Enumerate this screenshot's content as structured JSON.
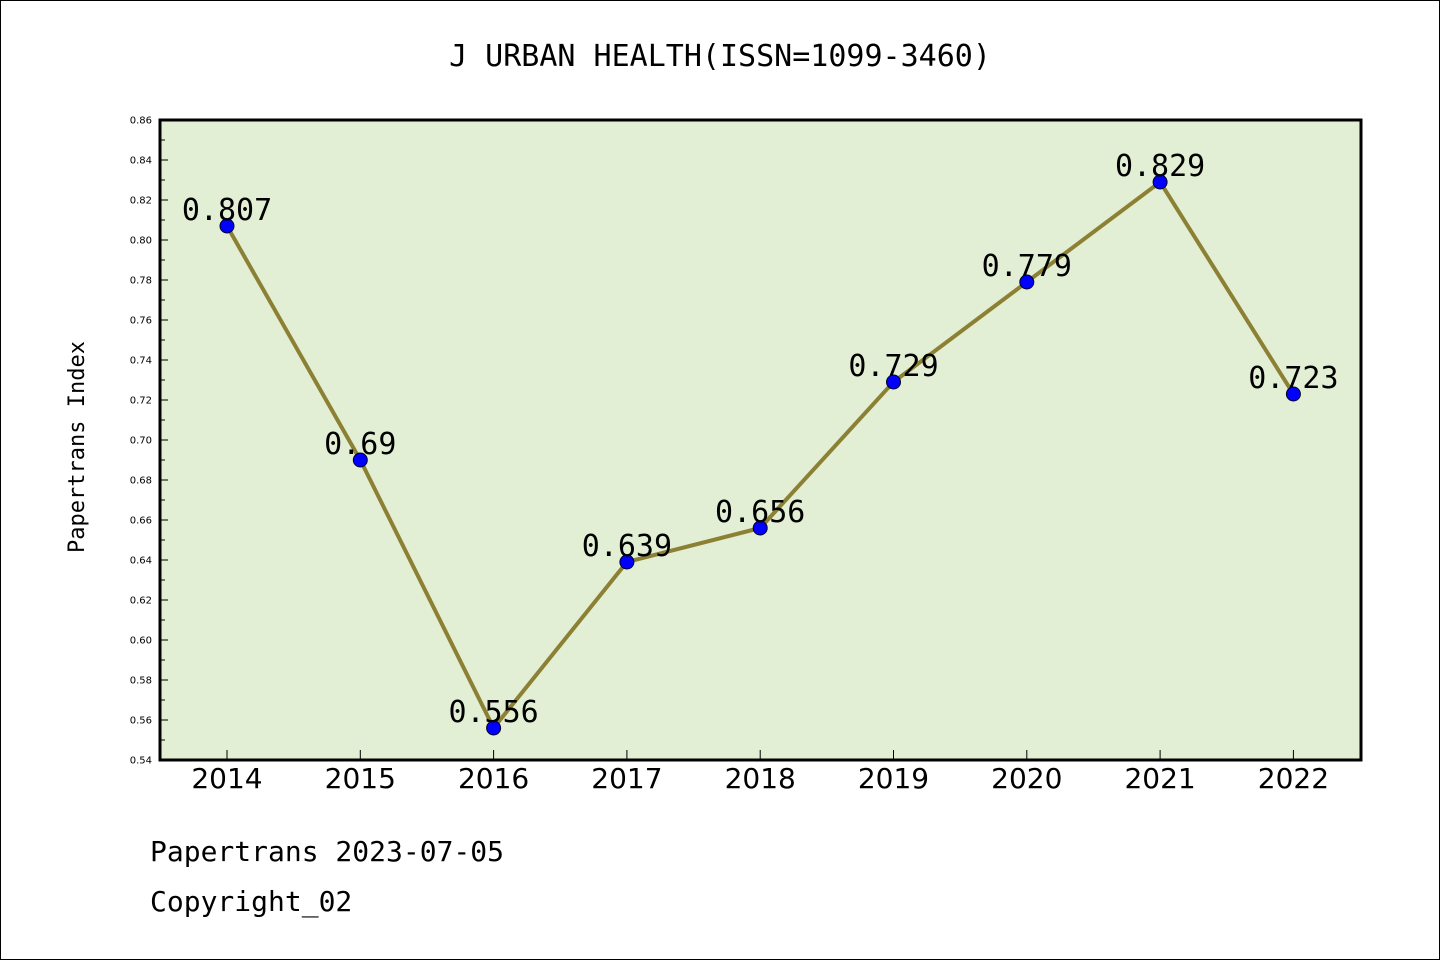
{
  "chart_data": {
    "type": "line",
    "title": "J URBAN HEALTH(ISSN=1099-3460)",
    "xlabel": "",
    "ylabel": "Papertrans Index",
    "categories": [
      "2014",
      "2015",
      "2016",
      "2017",
      "2018",
      "2019",
      "2020",
      "2021",
      "2022"
    ],
    "series": [
      {
        "values": [
          0.807,
          0.69,
          0.556,
          0.639,
          0.656,
          0.729,
          0.779,
          0.829,
          0.723
        ],
        "labels": [
          "0.807",
          "0.69",
          "0.556",
          "0.639",
          "0.656",
          "0.729",
          "0.779",
          "0.829",
          "0.723"
        ]
      }
    ],
    "ylim": [
      0.54,
      0.86
    ],
    "yticks": [
      "0.54",
      "0.56",
      "0.58",
      "0.60",
      "0.62",
      "0.64",
      "0.66",
      "0.68",
      "0.70",
      "0.72",
      "0.74",
      "0.76",
      "0.78",
      "0.80",
      "0.82",
      "0.84",
      "0.86"
    ],
    "grid": false,
    "legend": "none"
  },
  "colors": {
    "plot_background": "#e2efd4",
    "line": "#8c8034",
    "marker": "#0000ff"
  },
  "footer": {
    "line1": "Papertrans 2023-07-05",
    "line2": "Copyright_02"
  }
}
